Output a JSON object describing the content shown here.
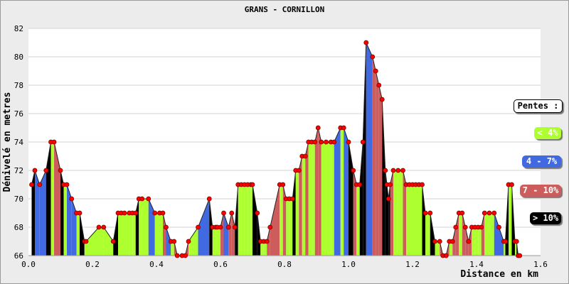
{
  "chart_data": {
    "type": "area",
    "title": "GRANS - CORNILLON",
    "xlabel": "Distance en km",
    "ylabel": "Dénivelé en metres",
    "xlim": [
      0,
      1.6
    ],
    "ylim": [
      66,
      82
    ],
    "xticks": [
      "0.0",
      "0.2",
      "0.4",
      "0.6",
      "0.8",
      "1.0",
      "1.2",
      "1.4",
      "1.6"
    ],
    "yticks": [
      "66",
      "68",
      "70",
      "72",
      "74",
      "76",
      "78",
      "80",
      "82"
    ],
    "grid": true,
    "legend_position": "right",
    "legend": {
      "title": "Pentes :",
      "entries": [
        {
          "label": "< 4%",
          "color": "#adff2f"
        },
        {
          "label": "4 - 7%",
          "color": "#4169e1"
        },
        {
          "label": "7 - 10%",
          "color": "#cd5c5c"
        },
        {
          "label": "> 10%",
          "color": "#000000"
        }
      ]
    },
    "series": [
      {
        "x": [
          0.01,
          0.02,
          0.035,
          0.055,
          0.07,
          0.08,
          0.1,
          0.11,
          0.12,
          0.135,
          0.15,
          0.16,
          0.175,
          0.18,
          0.22,
          0.235,
          0.265,
          0.28,
          0.29,
          0.3,
          0.315,
          0.325,
          0.335,
          0.345,
          0.355,
          0.375,
          0.395,
          0.41,
          0.42,
          0.43,
          0.445,
          0.455,
          0.465,
          0.48,
          0.49,
          0.5,
          0.53,
          0.565,
          0.575,
          0.585,
          0.59,
          0.6,
          0.61,
          0.625,
          0.635,
          0.645,
          0.655,
          0.665,
          0.675,
          0.685,
          0.695,
          0.7,
          0.715,
          0.725,
          0.735,
          0.745,
          0.755,
          0.785,
          0.795,
          0.805,
          0.815,
          0.825,
          0.835,
          0.845,
          0.855,
          0.865,
          0.875,
          0.885,
          0.895,
          0.905,
          0.915,
          0.93,
          0.945,
          0.955,
          0.975,
          0.985,
          1.0,
          1.015,
          1.025,
          1.035,
          1.045,
          1.055,
          1.075,
          1.085,
          1.095,
          1.105,
          1.115,
          1.12,
          1.125,
          1.13,
          1.14,
          1.155,
          1.17,
          1.18,
          1.19,
          1.2,
          1.21,
          1.22,
          1.23,
          1.24,
          1.255,
          1.27,
          1.285,
          1.295,
          1.305,
          1.315,
          1.325,
          1.335,
          1.345,
          1.355,
          1.365,
          1.375,
          1.385,
          1.395,
          1.405,
          1.415,
          1.425,
          1.44,
          1.455,
          1.47,
          1.485,
          1.49,
          1.5,
          1.51,
          1.52,
          1.525,
          1.53,
          1.535
        ],
        "y": [
          71,
          72,
          71,
          72,
          74,
          74,
          72,
          71,
          71,
          70,
          69,
          69,
          67,
          67,
          68,
          68,
          67,
          69,
          69,
          69,
          69,
          69,
          69,
          70,
          70,
          70,
          69,
          69,
          69,
          68,
          67,
          67,
          66,
          66,
          66,
          67,
          68,
          70,
          68,
          68,
          68,
          68,
          69,
          68,
          69,
          68,
          71,
          71,
          71,
          71,
          71,
          71,
          69,
          67,
          67,
          67,
          68,
          71,
          71,
          70,
          70,
          70,
          72,
          72,
          73,
          73,
          74,
          74,
          74,
          75,
          74,
          74,
          74,
          74,
          75,
          75,
          74,
          72,
          71,
          71,
          74,
          81,
          80,
          79,
          78,
          77,
          72,
          71,
          70,
          71,
          72,
          72,
          72,
          71,
          71,
          71,
          71,
          71,
          71,
          69,
          69,
          67,
          67,
          66,
          66,
          67,
          67,
          68,
          69,
          69,
          68,
          67,
          68,
          68,
          68,
          68,
          69,
          69,
          69,
          68,
          67,
          67,
          71,
          71,
          67,
          67,
          66,
          66
        ]
      }
    ]
  }
}
